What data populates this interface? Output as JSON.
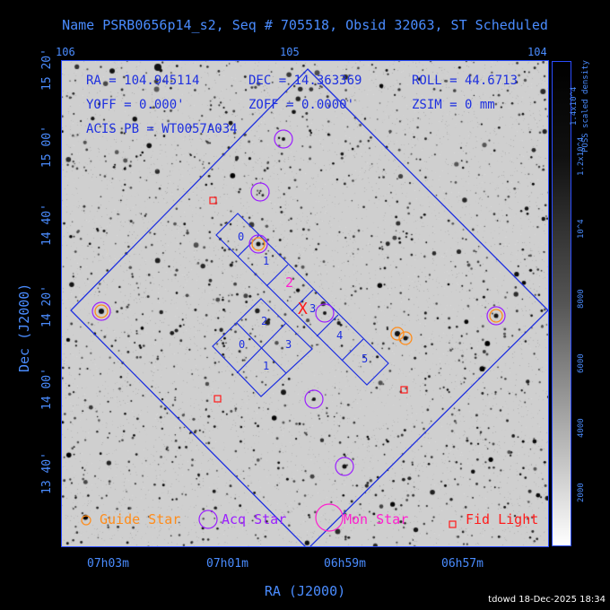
{
  "title": "Name PSRB0656p14_s2, Seq # 705518, Obsid 32063, ST Scheduled",
  "info": {
    "ra": "RA = 104.945114",
    "dec": "DEC = 14.363369",
    "roll": "ROLL = 44.6713",
    "yoff": "YOFF = 0.000'",
    "zoff": "ZOFF = 0.0000'",
    "zsim": "ZSIM = 0 mm",
    "acis_pb": "ACIS PB = WT0057A034"
  },
  "top_axis_ticks": [
    "106",
    "105",
    "104"
  ],
  "ra_ticks": [
    "07h03m",
    "07h01m",
    "06h59m",
    "06h57m"
  ],
  "dec_ticks": [
    "15 20'",
    "15 00'",
    "14 40'",
    "14 20'",
    "14 00'",
    "13 40'"
  ],
  "xlabel": "RA (J2000)",
  "ylabel": "Dec (J2000)",
  "colorbar": {
    "title": "POSS scaled density",
    "ticks": [
      "2000",
      "4000",
      "6000",
      "8000",
      "10^4",
      "1.2x10^4",
      "1.4x10^4"
    ]
  },
  "legend": [
    {
      "label": "Guide Star",
      "color": "#ff8c1a",
      "marker": "small-circle"
    },
    {
      "label": "Acq Star",
      "color": "#9b1fff",
      "marker": "circle"
    },
    {
      "label": "Mon Star",
      "color": "#ff1fcf",
      "marker": "large-circle"
    },
    {
      "label": "Fid Light",
      "color": "#ff1a1a",
      "marker": "square"
    }
  ],
  "ccd_labels": [
    "0",
    "1",
    "2",
    "3",
    "4",
    "5",
    "2",
    "0",
    "3",
    "1"
  ],
  "aimpoint_label": "X",
  "aimpoint_num": "3",
  "footer": "tdowd 18-Dec-2025 18:34",
  "colors": {
    "frame": "#2a4cff",
    "text": "#4a8cff",
    "info": "#1d2fe0"
  }
}
